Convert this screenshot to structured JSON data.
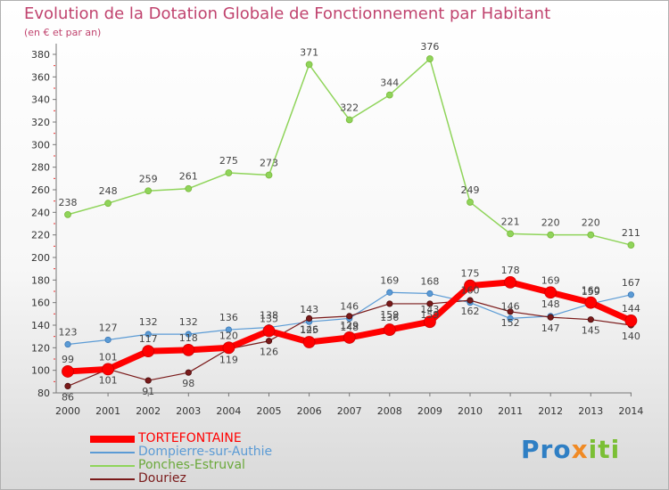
{
  "colors": {
    "title": "#c0436e",
    "TORTEFONTAINE": "#ff0000",
    "Dompierre-sur-Authie": "#5b9bd5",
    "Ponches-Estruval": "#8fd45a",
    "Douriez": "#7a1a1a"
  },
  "logo": {
    "part1": "Pro",
    "part2": "x",
    "part3": "iti"
  },
  "chart_data": {
    "type": "line",
    "title": "Evolution de la Dotation Globale de Fonctionnement par Habitant",
    "subtitle": "(en € et par an)",
    "xlabel": "",
    "ylabel": "",
    "ylim": [
      80,
      380
    ],
    "yticks": [
      80,
      100,
      120,
      140,
      160,
      180,
      200,
      220,
      240,
      260,
      280,
      300,
      320,
      340,
      360,
      380
    ],
    "x": [
      "2000",
      "2001",
      "2002",
      "2003",
      "2004",
      "2005",
      "2006",
      "2007",
      "2008",
      "2009",
      "2010",
      "2011",
      "2012",
      "2013",
      "2014"
    ],
    "grid": false,
    "legend_position": "bottom-left",
    "series": [
      {
        "name": "Ponches-Estruval",
        "values": [
          238,
          248,
          259,
          261,
          275,
          273,
          371,
          322,
          344,
          376,
          249,
          221,
          220,
          220,
          211
        ]
      },
      {
        "name": "Dompierre-sur-Authie",
        "values": [
          123,
          127,
          132,
          132,
          136,
          138,
          143,
          146,
          169,
          168,
          160,
          146,
          148,
          159,
          167
        ]
      },
      {
        "name": "Douriez",
        "values": [
          86,
          101,
          91,
          98,
          119,
          126,
          146,
          148,
          159,
          159,
          162,
          152,
          147,
          145,
          140
        ]
      },
      {
        "name": "TORTEFONTAINE",
        "values": [
          99,
          101,
          117,
          118,
          120,
          135,
          125,
          129,
          136,
          143,
          175,
          178,
          169,
          160,
          144
        ]
      }
    ],
    "visible_labels": {
      "Ponches-Estruval": [
        "238",
        "248",
        "259",
        "261",
        "275",
        "273",
        "371",
        "322",
        "344",
        "376",
        "249",
        "221",
        "220",
        "220",
        "211"
      ],
      "Dompierre-sur-Authie": [
        "123",
        "127",
        "132",
        "132",
        "136",
        "138",
        "143",
        "146",
        "169",
        "168",
        "160",
        "146",
        "148",
        "159",
        "167"
      ],
      "Douriez": [
        "86",
        "101",
        "91",
        "98",
        "119",
        "126",
        "146",
        "148",
        "159",
        "159",
        "162",
        "152",
        "147",
        "145",
        "140"
      ],
      "TORTEFONTAINE": [
        "99",
        "101",
        "117",
        "118",
        "120",
        "135",
        "125",
        "129",
        "136",
        "143",
        "175",
        "178",
        "169",
        "160",
        "144"
      ]
    }
  }
}
